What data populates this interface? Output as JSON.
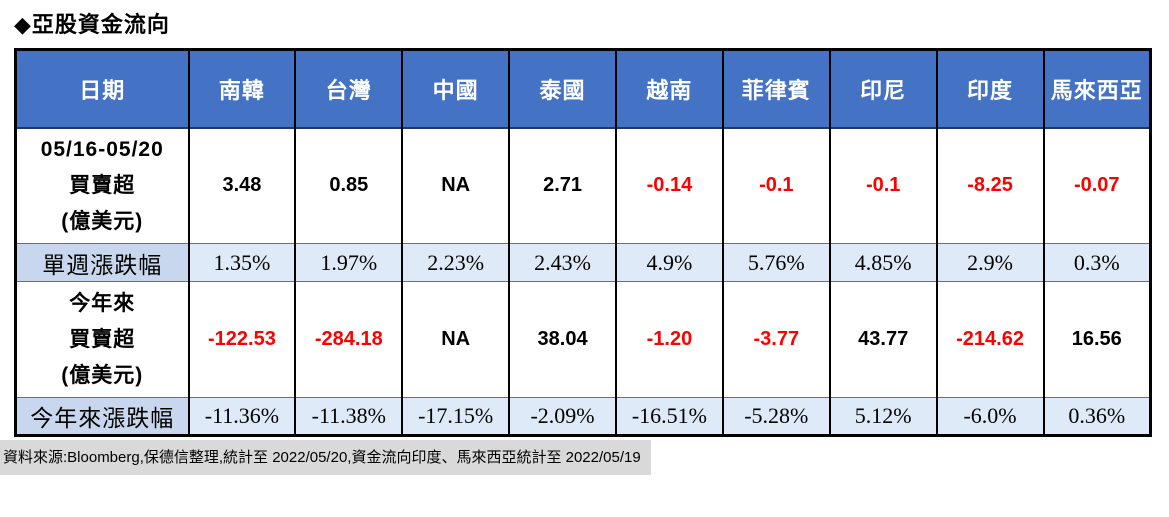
{
  "title": "◆亞股資金流向",
  "colors": {
    "header-bg": "#4472C4",
    "header-text": "#FFFFFF",
    "negative": "#FF0000",
    "stripe-bg": "#DEEAF7",
    "stripe-label-bg": "#C8D7EE",
    "footer-bg": "#D9D9D9",
    "accent": "#4472C4"
  },
  "table": {
    "columns": [
      "日期",
      "南韓",
      "台灣",
      "中國",
      "泰國",
      "越南",
      "菲律賓",
      "印尼",
      "印度",
      "馬來西亞"
    ],
    "rows": [
      {
        "type": "flow",
        "label_lines": [
          "05/16-05/20",
          "買賣超",
          "(億美元)"
        ],
        "values": [
          "3.48",
          "0.85",
          "NA",
          "2.71",
          "-0.14",
          "-0.1",
          "-0.1",
          "-8.25",
          "-0.07"
        ]
      },
      {
        "type": "percent",
        "label_lines": [
          "單週漲跌幅"
        ],
        "values": [
          "1.35%",
          "1.97%",
          "2.23%",
          "2.43%",
          "4.9%",
          "5.76%",
          "4.85%",
          "2.9%",
          "0.3%"
        ]
      },
      {
        "type": "flow",
        "label_lines": [
          "今年來",
          "買賣超",
          "(億美元)"
        ],
        "values": [
          "-122.53",
          "-284.18",
          "NA",
          "38.04",
          "-1.20",
          "-3.77",
          "43.77",
          "-214.62",
          "16.56"
        ]
      },
      {
        "type": "percent",
        "label_lines": [
          "今年來漲跌幅"
        ],
        "values": [
          "-11.36%",
          "-11.38%",
          "-17.15%",
          "-2.09%",
          "-16.51%",
          "-5.28%",
          "5.12%",
          "-6.0%",
          "0.36%"
        ]
      }
    ]
  },
  "footer": "資料來源:Bloomberg,保德信整理,統計至 2022/05/20,資金流向印度、馬來西亞統計至 2022/05/19"
}
